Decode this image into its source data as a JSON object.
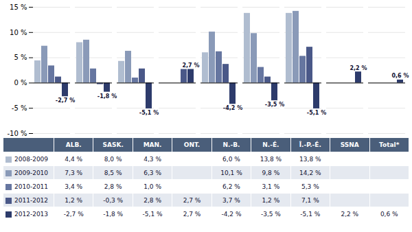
{
  "chart_data": {
    "type": "bar",
    "categories": [
      "ALB.",
      "SASK.",
      "MAN.",
      "ONT.",
      "N.-B.",
      "N.-É.",
      "Î.-P.-É.",
      "SSNA",
      "Total*"
    ],
    "series": [
      {
        "name": "2008-2009",
        "color": "#b0bdd0",
        "values": [
          4.4,
          8.0,
          4.3,
          null,
          6.0,
          13.8,
          13.8,
          null,
          null
        ],
        "value_labels": [
          "4,4 %",
          "8,0 %",
          "4,3 %",
          null,
          "6,0 %",
          "13,8 %",
          "13,8 %",
          null,
          null
        ]
      },
      {
        "name": "2009-2010",
        "color": "#8a9ab8",
        "values": [
          7.3,
          8.5,
          6.3,
          null,
          10.1,
          9.8,
          14.2,
          null,
          null
        ],
        "value_labels": [
          "7,3 %",
          "8,5 %",
          "6,3 %",
          null,
          "10,1 %",
          "9,8 %",
          "14,2 %",
          null,
          null
        ]
      },
      {
        "name": "2010-2011",
        "color": "#6676a0",
        "values": [
          3.4,
          2.8,
          1.0,
          null,
          6.2,
          3.1,
          5.3,
          null,
          null
        ],
        "value_labels": [
          "3,4 %",
          "2,8 %",
          "1,0 %",
          null,
          "6,2 %",
          "3,1 %",
          "5,3 %",
          null,
          null
        ]
      },
      {
        "name": "2011-2012",
        "color": "#4a5888",
        "values": [
          1.2,
          -0.3,
          2.8,
          2.7,
          3.7,
          1.2,
          7.1,
          null,
          null
        ],
        "value_labels": [
          "1,2 %",
          "-0,3 %",
          "2,8 %",
          "2,7 %",
          "3,7 %",
          "1,2 %",
          "7,1 %",
          null,
          null
        ]
      },
      {
        "name": "2012-2013",
        "color": "#2d3b6b",
        "values": [
          -2.7,
          -1.8,
          -5.1,
          2.7,
          -4.2,
          -3.5,
          -5.1,
          2.2,
          0.6
        ],
        "value_labels": [
          "-2,7 %",
          "-1,8 %",
          "-5,1 %",
          "2,7 %",
          "-4,2 %",
          "-3,5 %",
          "-5,1 %",
          "2,2 %",
          "0,6 %"
        ]
      }
    ],
    "annotations": [
      {
        "category": "ALB.",
        "series": "2012-2013",
        "text": "-2,7 %"
      },
      {
        "category": "SASK.",
        "series": "2012-2013",
        "text": "-1,8 %"
      },
      {
        "category": "MAN.",
        "series": "2012-2013",
        "text": "-5,1 %"
      },
      {
        "category": "ONT.",
        "series": "2012-2013",
        "text": "2,7 %"
      },
      {
        "category": "N.-B.",
        "series": "2012-2013",
        "text": "-4,2 %"
      },
      {
        "category": "N.-É.",
        "series": "2012-2013",
        "text": "-3,5 %"
      },
      {
        "category": "Î.-P.-É.",
        "series": "2012-2013",
        "text": "-5,1 %"
      },
      {
        "category": "SSNA",
        "series": "2012-2013",
        "text": "2,2 %"
      },
      {
        "category": "Total*",
        "series": "2012-2013",
        "text": "0,6 %"
      }
    ],
    "ylim": [
      -10,
      15
    ],
    "yticks": [
      {
        "value": -10,
        "label": "-10 %"
      },
      {
        "value": -5,
        "label": "-5 %"
      },
      {
        "value": 0,
        "label": "0 %"
      },
      {
        "value": 5,
        "label": "5 %"
      },
      {
        "value": 10,
        "label": "10 %"
      },
      {
        "value": 15,
        "label": "15 %"
      }
    ],
    "grid": true,
    "tick_labels": "y"
  }
}
